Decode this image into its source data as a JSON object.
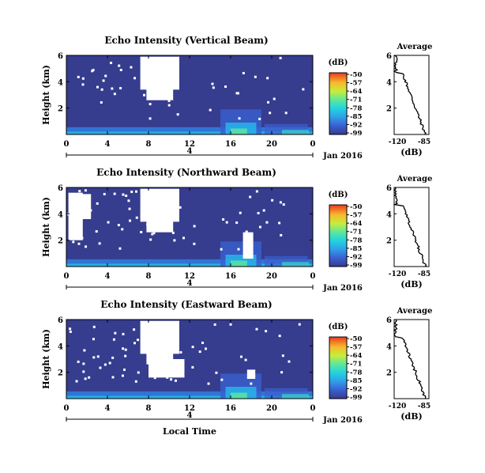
{
  "figure": {
    "x_axis_label": "Local Time",
    "date_label": "Jan 2016",
    "day_marker": "4",
    "cbar_unit": "(dB)",
    "avg_title": "Average",
    "avg_xlabel": "(dB)"
  },
  "colors": {
    "background_field": "#363c8e",
    "avg_line": "#000000"
  },
  "chart_data": [
    {
      "type": "heatmap",
      "title": "Echo Intensity (Vertical Beam)",
      "ylabel": "Height (km)",
      "xlabel": "Local Time",
      "x_ticks": [
        "0",
        "4",
        "8",
        "12",
        "16",
        "20",
        "0"
      ],
      "y_ticks": [
        "6",
        "4",
        "2"
      ],
      "xlim": [
        0,
        24
      ],
      "ylim": [
        0,
        6
      ],
      "colorbar": {
        "label": "(dB)",
        "ticks": [
          "-50",
          "-57",
          "-64",
          "-71",
          "-78",
          "-85",
          "-92",
          "-99"
        ],
        "range": [
          -99,
          -50
        ]
      },
      "average_profile": {
        "title": "Average",
        "xlabel": "(dB)",
        "x_ticks": [
          "-120",
          "-85"
        ],
        "y_ticks": [
          "6",
          "4",
          "2"
        ],
        "xlim": [
          -120,
          -80
        ]
      }
    },
    {
      "type": "heatmap",
      "title": "Echo Intensity (Northward Beam)",
      "ylabel": "Height (km)",
      "xlabel": "Local Time",
      "x_ticks": [
        "0",
        "4",
        "8",
        "12",
        "16",
        "20",
        "0"
      ],
      "y_ticks": [
        "6",
        "4",
        "2"
      ],
      "xlim": [
        0,
        24
      ],
      "ylim": [
        0,
        6
      ],
      "colorbar": {
        "label": "(dB)",
        "ticks": [
          "-50",
          "-57",
          "-64",
          "-71",
          "-78",
          "-85",
          "-92",
          "-99"
        ],
        "range": [
          -99,
          -50
        ]
      },
      "average_profile": {
        "title": "Average",
        "xlabel": "(dB)",
        "x_ticks": [
          "-120",
          "-85"
        ],
        "y_ticks": [
          "6",
          "4",
          "2"
        ],
        "xlim": [
          -120,
          -80
        ]
      }
    },
    {
      "type": "heatmap",
      "title": "Echo Intensity (Eastward Beam)",
      "ylabel": "Height (km)",
      "xlabel": "Local Time",
      "x_ticks": [
        "0",
        "4",
        "8",
        "12",
        "16",
        "20",
        "0"
      ],
      "y_ticks": [
        "6",
        "4",
        "2"
      ],
      "xlim": [
        0,
        24
      ],
      "ylim": [
        0,
        6
      ],
      "colorbar": {
        "label": "(dB)",
        "ticks": [
          "-50",
          "-57",
          "-64",
          "-71",
          "-78",
          "-85",
          "-92",
          "-99"
        ],
        "range": [
          -99,
          -50
        ]
      },
      "average_profile": {
        "title": "Average",
        "xlabel": "(dB)",
        "x_ticks": [
          "-120",
          "-85"
        ],
        "y_ticks": [
          "6",
          "4",
          "2"
        ],
        "xlim": [
          -120,
          -80
        ]
      }
    }
  ]
}
